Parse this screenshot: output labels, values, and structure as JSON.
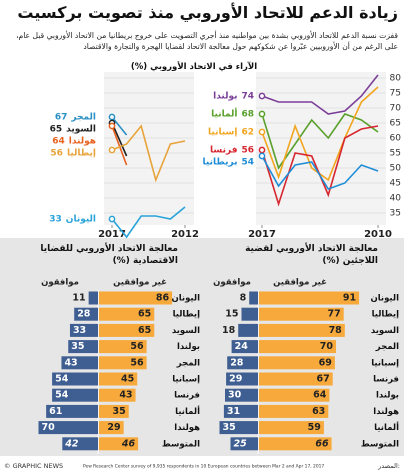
{
  "header": {
    "title": "زيادة الدعم للاتحاد الأوروبي منذ تصويت بركسيت",
    "subtitle": "قفزت نسبة الدعم للاتحاد الأوروبي بشدة بين مواطنيه منذ أجري التصويت على خروج بريطانيا من الاتحاد الأوروبي قبل عام، على الرغم من أن الأوروبيين عبّروا عن شكوكهم حول معالجة الاتحاد لقضايا الهجرة والتجارة والاقتصاد",
    "chart_heading": "الآراء في الاتحاد الأوروبي (%)"
  },
  "chart_data": [
    {
      "type": "line",
      "x": [
        2010,
        2011,
        2012,
        2013,
        2014,
        2015,
        2016,
        2017
      ],
      "xlim": [
        2017,
        2010
      ],
      "xticks": [
        2017,
        2010
      ],
      "ylim": [
        31,
        82
      ],
      "yticks": [
        35,
        40,
        45,
        50,
        55,
        60,
        65,
        70,
        75,
        80
      ],
      "grid": true,
      "series": [
        {
          "name": "بولندا",
          "color": "#7b3f98",
          "values": [
            81,
            74,
            69,
            68,
            72,
            72,
            72,
            74
          ]
        },
        {
          "name": "ألمانيا",
          "color": "#5aa02c",
          "values": [
            62,
            66,
            68,
            60,
            66,
            58,
            50,
            68
          ]
        },
        {
          "name": "إسبانيا",
          "color": "#f2a51f",
          "values": [
            77,
            72,
            60,
            46,
            50,
            64,
            47,
            62
          ]
        },
        {
          "name": "فرنسا",
          "color": "#d7262f",
          "values": [
            64,
            63,
            60,
            41,
            54,
            55,
            38,
            56
          ]
        },
        {
          "name": "بريطانيا",
          "color": "#1f8dd6",
          "values": [
            49,
            51,
            45,
            43,
            52,
            51,
            44,
            54
          ]
        }
      ]
    },
    {
      "type": "line",
      "x": [
        2012,
        2013,
        2014,
        2015,
        2016,
        2017
      ],
      "xlim": [
        2017,
        2012
      ],
      "xticks": [
        2017,
        2012
      ],
      "ylim": [
        31,
        82
      ],
      "yticks": [
        35,
        40,
        45,
        50,
        55,
        60,
        65,
        70,
        75,
        80
      ],
      "grid": true,
      "series": [
        {
          "name": "المجر",
          "color": "#2a8fc4",
          "values": [
            null,
            null,
            null,
            null,
            61,
            67
          ]
        },
        {
          "name": "السويد",
          "color": "#222222",
          "values": [
            null,
            null,
            null,
            null,
            54,
            65
          ]
        },
        {
          "name": "هولندا",
          "color": "#e8611f",
          "values": [
            null,
            null,
            null,
            null,
            51,
            64
          ]
        },
        {
          "name": "إيطاليا",
          "color": "#e8a33a",
          "values": [
            59,
            58,
            46,
            64,
            58,
            56
          ]
        },
        {
          "name": "اليونان",
          "color": "#29a3d9",
          "values": [
            37,
            33,
            34,
            34,
            27,
            33
          ]
        }
      ]
    },
    {
      "type": "diverging_bar",
      "title": "معالجة الاتحاد الأوروبي للقضايا الاقتصادية (%)",
      "categories": [
        "اليونان",
        "إيطاليا",
        "السويد",
        "بولندا",
        "المجر",
        "إسبانيا",
        "فرنسا",
        "ألمانيا",
        "هولندا",
        "المتوسط"
      ],
      "series": [
        {
          "name": "موافقون",
          "color": "#3f5f92",
          "values": [
            11,
            28,
            33,
            35,
            43,
            54,
            54,
            61,
            70,
            42
          ]
        },
        {
          "name": "غير موافقين",
          "color": "#f7a93b",
          "values": [
            86,
            65,
            65,
            56,
            56,
            45,
            43,
            35,
            29,
            46
          ]
        }
      ]
    },
    {
      "type": "diverging_bar",
      "title": "معالجة الاتحاد الأوروبي لقضية اللاجئين (%)",
      "categories": [
        "اليونان",
        "إيطاليا",
        "السويد",
        "المجر",
        "إسبانيا",
        "فرنسا",
        "بولندا",
        "هولندا",
        "ألمانيا",
        "المتوسط"
      ],
      "series": [
        {
          "name": "موافقون",
          "color": "#3f5f92",
          "values": [
            8,
            15,
            18,
            24,
            28,
            29,
            30,
            31,
            35,
            25
          ]
        },
        {
          "name": "غير موافقين",
          "color": "#f7a93b",
          "values": [
            91,
            77,
            78,
            70,
            69,
            67,
            64,
            63,
            59,
            66
          ]
        }
      ]
    }
  ],
  "footer": {
    "credit": "© GRAPHIC NEWS",
    "source": "Pew Research Center survey of 9,935 respondents in 10 European countries between Mar 2 and Apr 17, 2017",
    "source_label": "المصدر:"
  }
}
